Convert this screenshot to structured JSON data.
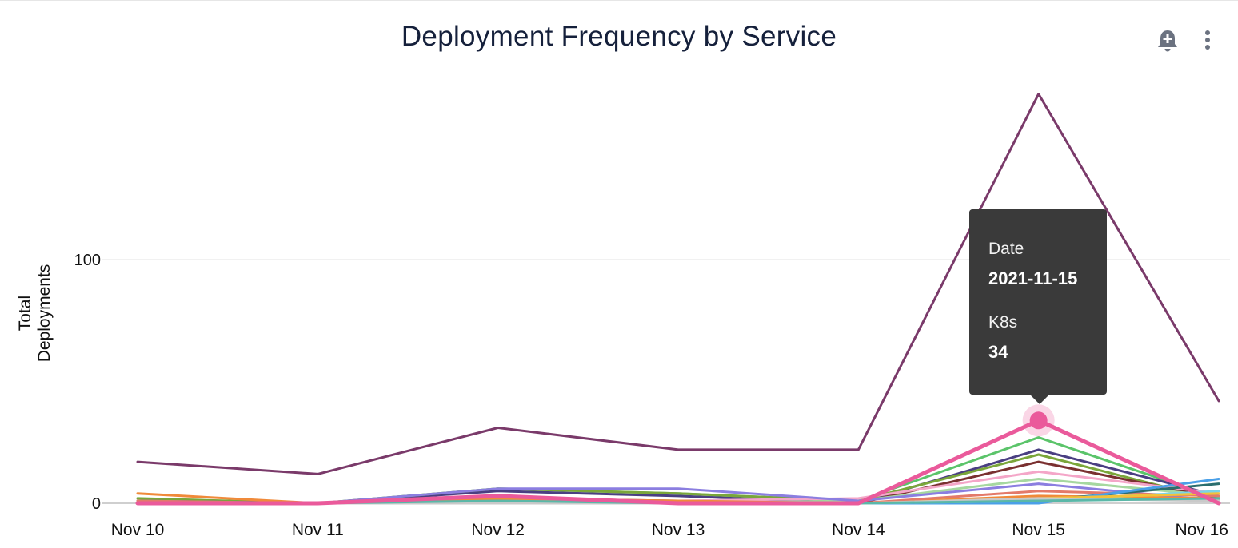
{
  "title": "Deployment Frequency by Service",
  "toolbar": {
    "alert_icon": "bell-plus-icon",
    "menu_icon": "more-vertical-icon"
  },
  "tooltip": {
    "date_label": "Date",
    "date_value": "2021-11-15",
    "series_label": "K8s",
    "series_value": "34"
  },
  "chart_data": {
    "type": "line",
    "title": "Deployment Frequency by Service",
    "xlabel": "",
    "ylabel": "Total Deployments",
    "categories": [
      "Nov 10",
      "Nov 11",
      "Nov 12",
      "Nov 13",
      "Nov 14",
      "Nov 15",
      "Nov 16"
    ],
    "yticks": [
      0,
      100
    ],
    "ylim": [
      0,
      170
    ],
    "grid": true,
    "legend": "none",
    "highlight": {
      "series": "K8s",
      "category": "Nov 15",
      "value": 34
    },
    "series": [
      {
        "color": "#7a3a6a",
        "width": 3,
        "values": [
          17,
          12,
          31,
          22,
          22,
          168,
          42
        ]
      },
      {
        "name": "K8s",
        "color": "#ea5a9b",
        "width": 5,
        "values": [
          0,
          0,
          3,
          0,
          0,
          34,
          0
        ]
      },
      {
        "color": "#5bc46a",
        "width": 3,
        "values": [
          1,
          0,
          6,
          4,
          1,
          27,
          2
        ]
      },
      {
        "color": "#4a3f82",
        "width": 3,
        "values": [
          0,
          0,
          5,
          3,
          0,
          22,
          3
        ]
      },
      {
        "color": "#7aa63a",
        "width": 3,
        "values": [
          2,
          0,
          6,
          4,
          1,
          20,
          1
        ]
      },
      {
        "color": "#7a3030",
        "width": 3,
        "values": [
          1,
          0,
          2,
          1,
          0,
          17,
          2
        ]
      },
      {
        "color": "#f4a6c8",
        "width": 3,
        "values": [
          0,
          0,
          1,
          1,
          2,
          13,
          4
        ]
      },
      {
        "color": "#a6d8a0",
        "width": 3,
        "values": [
          0,
          0,
          1,
          0,
          1,
          10,
          3
        ]
      },
      {
        "color": "#8b7ee0",
        "width": 3,
        "values": [
          1,
          0,
          6,
          6,
          1,
          8,
          1
        ]
      },
      {
        "color": "#f08a3a",
        "width": 3,
        "values": [
          4,
          0,
          2,
          1,
          0,
          3,
          2
        ]
      },
      {
        "color": "#e37a6a",
        "width": 3,
        "values": [
          1,
          0,
          1,
          0,
          0,
          5,
          3
        ]
      },
      {
        "color": "#2b6e6e",
        "width": 3,
        "values": [
          0,
          0,
          0,
          0,
          0,
          1,
          8
        ]
      },
      {
        "color": "#4aa0e8",
        "width": 3,
        "values": [
          0,
          0,
          0,
          0,
          0,
          0,
          10
        ]
      },
      {
        "color": "#7ad4e8",
        "width": 3,
        "values": [
          0,
          0,
          0,
          0,
          0,
          1,
          5
        ]
      },
      {
        "color": "#f2c23a",
        "width": 3,
        "values": [
          0,
          0,
          0,
          0,
          0,
          2,
          4
        ]
      },
      {
        "color": "#c9c9c9",
        "width": 3,
        "values": [
          0,
          0,
          0,
          0,
          0,
          2,
          1
        ]
      },
      {
        "color": "#5ab8a8",
        "width": 3,
        "values": [
          0,
          0,
          1,
          0,
          0,
          1,
          2
        ]
      }
    ]
  }
}
